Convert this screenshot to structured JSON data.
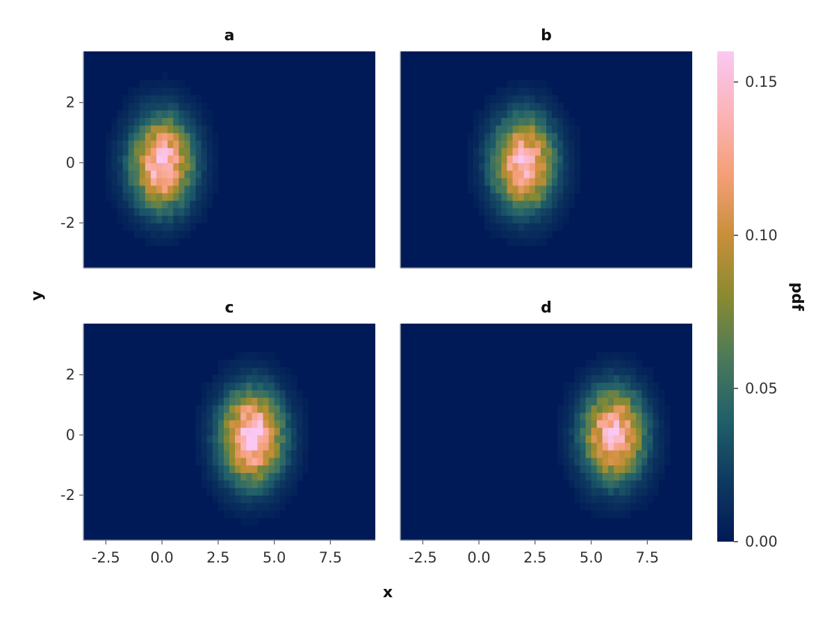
{
  "chart_data": [
    {
      "type": "heatmap",
      "title": "a",
      "center": [
        0.0,
        0.0
      ],
      "sigma": [
        0.95,
        1.05
      ],
      "peak": 0.15,
      "xlim": [
        -3.5,
        9.5
      ],
      "ylim": [
        -3.5,
        3.7
      ]
    },
    {
      "type": "heatmap",
      "title": "b",
      "center": [
        2.0,
        0.0
      ],
      "sigma": [
        0.95,
        1.05
      ],
      "peak": 0.145,
      "xlim": [
        -3.5,
        9.5
      ],
      "ylim": [
        -3.5,
        3.7
      ]
    },
    {
      "type": "heatmap",
      "title": "c",
      "center": [
        4.0,
        -0.05
      ],
      "sigma": [
        0.95,
        1.05
      ],
      "peak": 0.16,
      "xlim": [
        -3.5,
        9.5
      ],
      "ylim": [
        -3.5,
        3.7
      ]
    },
    {
      "type": "heatmap",
      "title": "d",
      "center": [
        6.0,
        0.0
      ],
      "sigma": [
        0.95,
        1.05
      ],
      "peak": 0.145,
      "xlim": [
        -3.5,
        9.5
      ],
      "ylim": [
        -3.5,
        3.7
      ]
    }
  ],
  "shared_axes": {
    "xlabel": "x",
    "ylabel": "y",
    "xticks": [
      "-2.5",
      "0.0",
      "2.5",
      "5.0",
      "7.5"
    ],
    "xtick_values": [
      -2.5,
      0.0,
      2.5,
      5.0,
      7.5
    ],
    "yticks": [
      "-2",
      "0",
      "2"
    ],
    "ytick_values": [
      -2,
      0,
      2
    ]
  },
  "colorbar": {
    "label": "pdf",
    "range": [
      0.0,
      0.16
    ],
    "ticks": [
      "0.00",
      "0.05",
      "0.10",
      "0.15"
    ],
    "tick_values": [
      0.0,
      0.05,
      0.1,
      0.15
    ],
    "colormap": [
      "#001a57",
      "#0f3a60",
      "#21606a",
      "#4b7a5a",
      "#8a8a30",
      "#c98f3a",
      "#f59f79",
      "#fbb4b8",
      "#fac8f2"
    ]
  }
}
